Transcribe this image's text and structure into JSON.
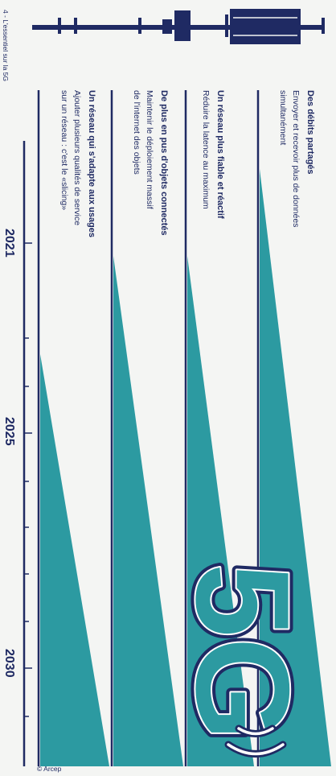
{
  "header": {
    "page_label": "4 - L'essentiel sur la 5G"
  },
  "timeline": {
    "years": [
      "2021",
      "2025",
      "2030"
    ]
  },
  "columns": [
    {
      "title": "Des débits partagés",
      "desc": [
        "Envoyer et recevoir plus de données",
        "simultanément"
      ]
    },
    {
      "title": "Un réseau plus fiable et réactif",
      "desc": [
        "Réduire la latence au maximum"
      ]
    },
    {
      "title": "De plus en pus d'objets connectés",
      "desc": [
        "Maintenir le déploiement massif",
        "de l'internet des objets"
      ]
    },
    {
      "title": "Un réseau qui s'adapte aux usages",
      "desc": [
        "Ajouter plusieurs qualités de service",
        "sur un réseau : c'est le «slicing»"
      ]
    }
  ],
  "logo": {
    "text": "5G"
  },
  "credit": "© Arcep",
  "colors": {
    "navy": "#1f2a63",
    "teal": "#2c9aa1",
    "background": "#f4f5f3"
  }
}
